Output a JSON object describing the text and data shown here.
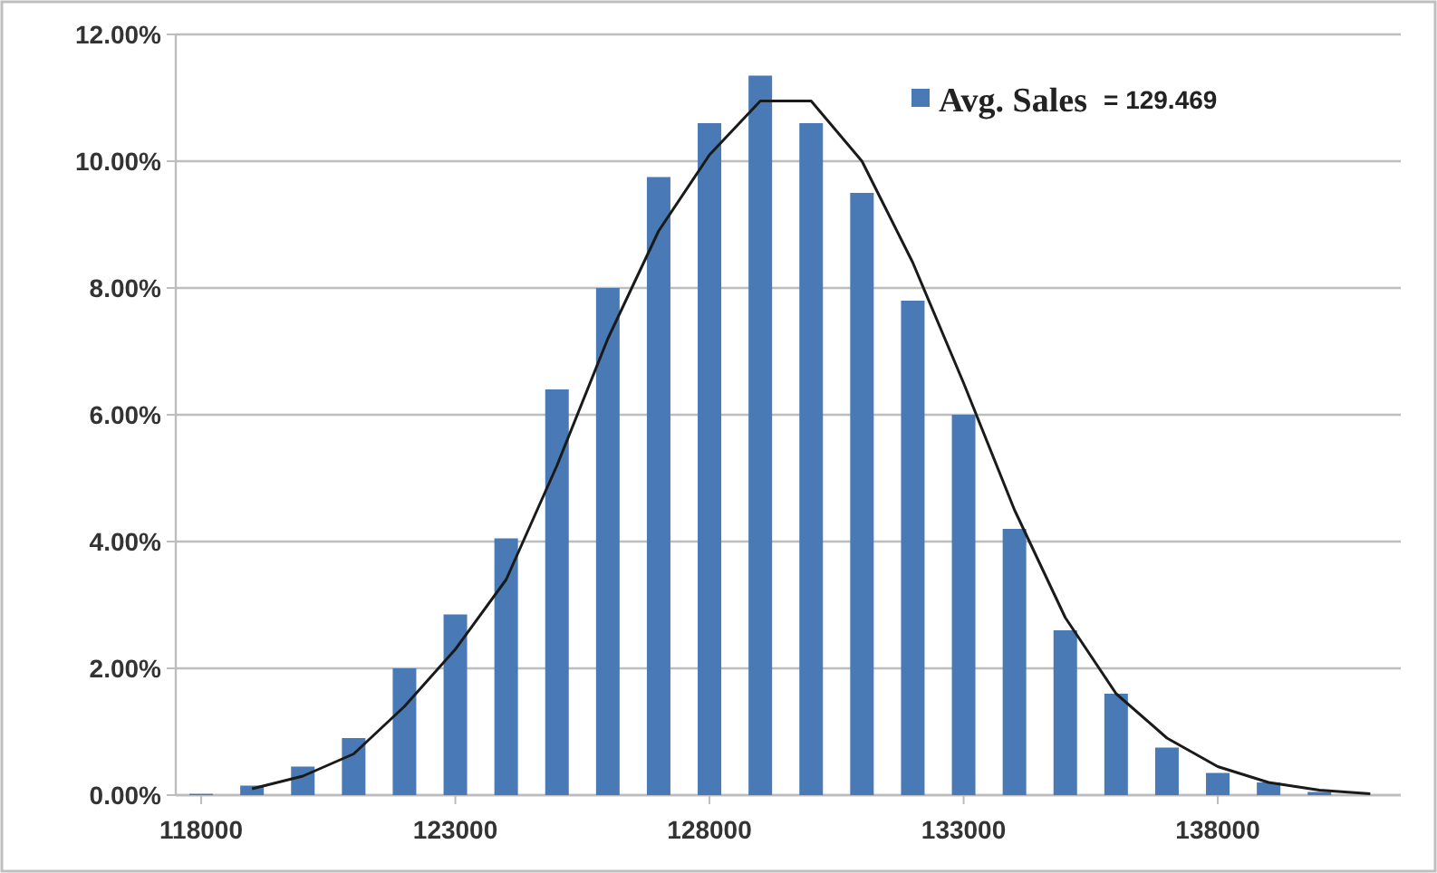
{
  "chart_data": {
    "type": "bar",
    "x": [
      118000,
      119000,
      120000,
      121000,
      122000,
      123000,
      124000,
      125000,
      126000,
      127000,
      128000,
      129000,
      130000,
      131000,
      132000,
      133000,
      134000,
      135000,
      136000,
      137000,
      138000,
      139000,
      140000
    ],
    "series": [
      {
        "name": "Avg. Sales",
        "color": "#4a7ab5",
        "values": [
          0.02,
          0.15,
          0.45,
          0.9,
          2.0,
          2.85,
          4.05,
          6.4,
          8.0,
          9.75,
          10.6,
          11.35,
          10.6,
          9.5,
          7.8,
          6.0,
          4.2,
          2.6,
          1.6,
          0.75,
          0.35,
          0.2,
          0.05
        ]
      },
      {
        "type": "line",
        "color": "#1a1a1a",
        "x": [
          119000,
          120000,
          121000,
          122000,
          123000,
          124000,
          125000,
          126000,
          127000,
          128000,
          129000,
          130000,
          131000,
          132000,
          133000,
          134000,
          135000,
          136000,
          137000,
          138000,
          139000,
          140000,
          141000
        ],
        "values": [
          0.1,
          0.3,
          0.65,
          1.4,
          2.3,
          3.4,
          5.2,
          7.2,
          8.9,
          10.1,
          10.95,
          10.95,
          10.0,
          8.4,
          6.5,
          4.5,
          2.8,
          1.6,
          0.9,
          0.45,
          0.2,
          0.08,
          0.02
        ]
      }
    ],
    "annotations": [
      "= 129.469"
    ],
    "xlim": [
      117500,
      141600
    ],
    "xticks": [
      118000,
      123000,
      128000,
      133000,
      138000
    ],
    "ylim": [
      0,
      12
    ],
    "yticks": [
      {
        "value": 0,
        "label": "0.00%"
      },
      {
        "value": 2,
        "label": "2.00%"
      },
      {
        "value": 4,
        "label": "4.00%"
      },
      {
        "value": 6,
        "label": "6.00%"
      },
      {
        "value": 8,
        "label": "8.00%"
      },
      {
        "value": 10,
        "label": "10.00%"
      },
      {
        "value": 12,
        "label": "12.00%"
      }
    ],
    "grid": "y",
    "legend": "top right",
    "marker": "none",
    "line_style": "solid"
  }
}
